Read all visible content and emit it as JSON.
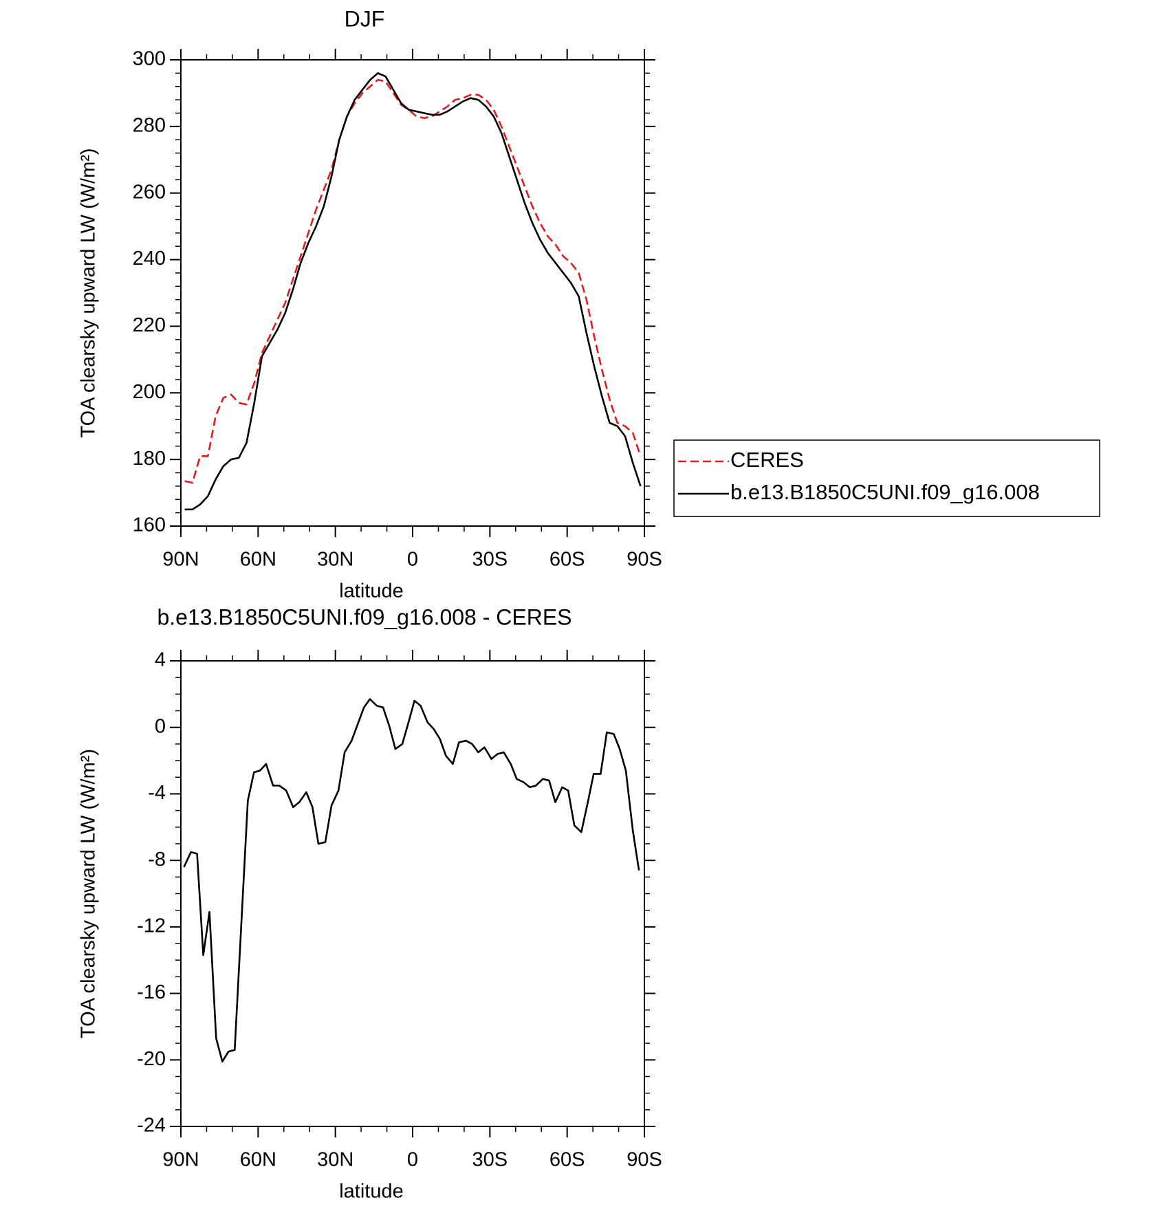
{
  "chart_data": [
    {
      "type": "line",
      "title": "DJF",
      "xlabel": "latitude",
      "ylabel": "TOA clearsky upward LW (W/m²)",
      "x": [
        88.5,
        85.5,
        82.5,
        79.5,
        76.5,
        73.5,
        70.5,
        67.5,
        64.5,
        61.5,
        58.5,
        55.5,
        52.5,
        49.5,
        46.5,
        43.5,
        40.5,
        37.5,
        34.5,
        31.5,
        28.5,
        25.5,
        22.5,
        19.5,
        16.5,
        13.5,
        10.5,
        7.5,
        4.5,
        1.5,
        -1.5,
        -4.5,
        -7.5,
        -10.5,
        -13.5,
        -16.5,
        -19.5,
        -22.5,
        -25.5,
        -28.5,
        -31.5,
        -34.5,
        -37.5,
        -40.5,
        -43.5,
        -46.5,
        -49.5,
        -52.5,
        -55.5,
        -58.5,
        -61.5,
        -64.5,
        -67.5,
        -70.5,
        -73.5,
        -76.5,
        -79.5,
        -82.5,
        -85.5,
        -88.5
      ],
      "series": [
        {
          "name": "CERES",
          "color": "#e41a1c",
          "dashed": true,
          "values": [
            173.5,
            173,
            181,
            181,
            193,
            198.5,
            199.5,
            197,
            196.5,
            203,
            212,
            217,
            222,
            227,
            234,
            241,
            248,
            255,
            261,
            267,
            276,
            283,
            287,
            290,
            292,
            294,
            293.5,
            290,
            286.5,
            285,
            283,
            282.5,
            283,
            284.5,
            286,
            288,
            288.5,
            289.5,
            289.5,
            288,
            285,
            280,
            274,
            268,
            262,
            256,
            251,
            247,
            244.5,
            241,
            239,
            236,
            228,
            217,
            207,
            198,
            191,
            190,
            188,
            181
          ]
        },
        {
          "name": "b.e13.B1850C5UNI.f09_g16.008",
          "color": "#000000",
          "dashed": false,
          "values": [
            165,
            165,
            166.5,
            169,
            174,
            178,
            180,
            180.5,
            185,
            197,
            211,
            215,
            219,
            224,
            231,
            239,
            245,
            250,
            256,
            265,
            276,
            283,
            288,
            291,
            294,
            296,
            295,
            291,
            287,
            285,
            284.5,
            284,
            283.5,
            283.5,
            284.5,
            286,
            287.5,
            288.5,
            288,
            286,
            283,
            278,
            271,
            264,
            257,
            251,
            246,
            242,
            239,
            236,
            233,
            229,
            218,
            208,
            199,
            191,
            190,
            187,
            179,
            172
          ]
        }
      ],
      "xlim": [
        90,
        -90
      ],
      "xticks": [
        {
          "value": 90,
          "label": "90N"
        },
        {
          "value": 60,
          "label": "60N"
        },
        {
          "value": 30,
          "label": "30N"
        },
        0,
        {
          "value": -30,
          "label": "30S"
        },
        {
          "value": -60,
          "label": "60S"
        },
        {
          "value": -90,
          "label": "90S"
        }
      ],
      "ylim": [
        160,
        300
      ],
      "yticks": [
        160,
        180,
        200,
        220,
        240,
        260,
        280,
        300
      ],
      "legend": "right"
    },
    {
      "type": "line",
      "title": "b.e13.B1850C5UNI.f09_g16.008 - CERES",
      "xlabel": "latitude",
      "ylabel": "TOA clearsky upward LW (W/m²)",
      "x": [
        88.8,
        86.1,
        83.7,
        81.3,
        78.9,
        76.3,
        73.9,
        71.5,
        69.1,
        64,
        61.6,
        59.3,
        56.9,
        54.2,
        51.8,
        49.1,
        46.4,
        44,
        41.3,
        38.9,
        36.6,
        33.9,
        31.5,
        28.8,
        26.4,
        23.7,
        21.3,
        18.9,
        16.6,
        13.9,
        11.5,
        9.1,
        6.7,
        4,
        1.6,
        -0.7,
        -3.1,
        -5.8,
        -8.2,
        -10.6,
        -12.9,
        -15.6,
        -18,
        -20.7,
        -23.1,
        -25.5,
        -27.9,
        -30.6,
        -33,
        -35.4,
        -38.1,
        -40.4,
        -43.1,
        -45.5,
        -47.9,
        -50.6,
        -53,
        -55.4,
        -58.1,
        -60.4,
        -62.8,
        -65.5,
        -67.9,
        -70.3,
        -73,
        -75.4,
        -78.1,
        -80.4,
        -82.8,
        -85.5,
        -87.9
      ],
      "series": [
        {
          "color": "#000000",
          "dashed": false,
          "values": [
            -8.4,
            -7.5,
            -7.6,
            -13.7,
            -11.1,
            -18.7,
            -20.1,
            -19.5,
            -19.4,
            -4.4,
            -2.7,
            -2.6,
            -2.2,
            -3.5,
            -3.5,
            -3.8,
            -4.8,
            -4.5,
            -3.9,
            -4.8,
            -7.0,
            -6.9,
            -4.7,
            -3.8,
            -1.5,
            -0.8,
            0.2,
            1.2,
            1.7,
            1.3,
            1.2,
            0.1,
            -1.3,
            -1.0,
            0.3,
            1.6,
            1.3,
            0.3,
            -0.1,
            -0.7,
            -1.7,
            -2.2,
            -0.9,
            -0.8,
            -1.0,
            -1.5,
            -1.2,
            -1.9,
            -1.6,
            -1.5,
            -2.2,
            -3.1,
            -3.3,
            -3.6,
            -3.5,
            -3.1,
            -3.2,
            -4.5,
            -3.6,
            -3.8,
            -5.9,
            -6.3,
            -4.6,
            -2.8,
            -2.8,
            -0.3,
            -0.4,
            -1.3,
            -2.6,
            -6.2,
            -8.6
          ]
        }
      ],
      "xlim": [
        90,
        -90
      ],
      "xticks": [
        {
          "value": 90,
          "label": "90N"
        },
        {
          "value": 60,
          "label": "60N"
        },
        {
          "value": 30,
          "label": "30N"
        },
        0,
        {
          "value": -30,
          "label": "30S"
        },
        {
          "value": -60,
          "label": "60S"
        },
        {
          "value": -90,
          "label": "90S"
        }
      ],
      "ylim": [
        -24,
        4
      ],
      "yticks": [
        -24,
        -20,
        -16,
        -12,
        -8,
        -4,
        0,
        4
      ]
    }
  ]
}
